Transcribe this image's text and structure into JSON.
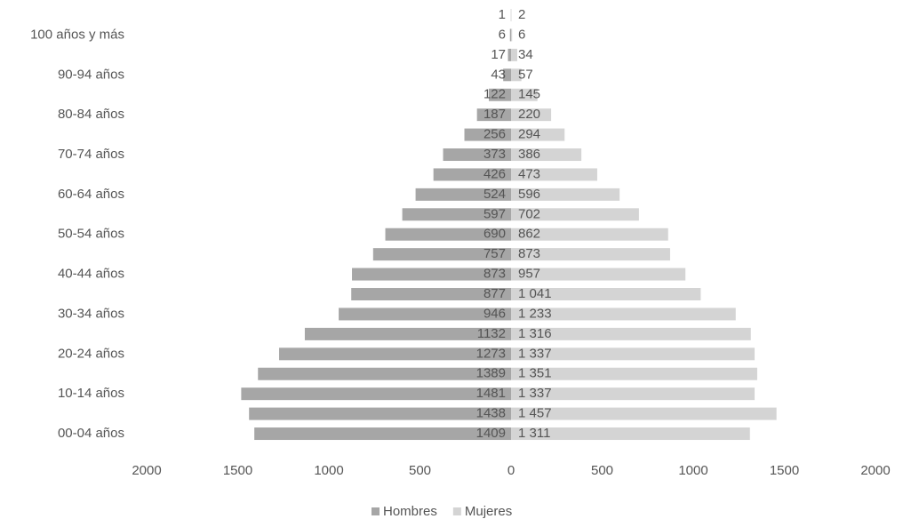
{
  "chart_data": {
    "type": "pyramid",
    "categories": [
      null,
      "100 años y más",
      null,
      "90-94 años",
      null,
      "80-84 años",
      null,
      "70-74 años",
      null,
      "60-64 años",
      null,
      "50-54 años",
      null,
      "40-44 años",
      null,
      "30-34 años",
      null,
      "20-24 años",
      null,
      "10-14 años",
      null,
      "00-04 años"
    ],
    "series": [
      {
        "name": "Hombres",
        "color": "#a6a6a6",
        "side": "left",
        "values": [
          1,
          6,
          17,
          43,
          122,
          187,
          256,
          373,
          426,
          524,
          597,
          690,
          757,
          873,
          877,
          946,
          1132,
          1273,
          1389,
          1481,
          1438,
          1409
        ]
      },
      {
        "name": "Mujeres",
        "color": "#d4d4d4",
        "side": "right",
        "values": [
          2,
          6,
          34,
          57,
          145,
          220,
          294,
          386,
          473,
          596,
          702,
          862,
          873,
          957,
          1041,
          1233,
          1316,
          1337,
          1351,
          1337,
          1457,
          1311
        ],
        "value_labels": [
          "2",
          "6",
          "34",
          "57",
          "145",
          "220",
          "294",
          "386",
          "473",
          "596",
          "702",
          "862",
          "873",
          "957",
          "1 041",
          "1 233",
          "1 316",
          "1 337",
          "1 351",
          "1 337",
          "1 457",
          "1 311"
        ]
      }
    ],
    "xlim": [
      -2000,
      2000
    ],
    "xticks": [
      {
        "value": -2000,
        "label": "2000"
      },
      {
        "value": -1500,
        "label": "1500"
      },
      {
        "value": -1000,
        "label": "1000"
      },
      {
        "value": -500,
        "label": "500"
      },
      0,
      500,
      1000,
      1500,
      2000
    ],
    "legend": "bottom"
  }
}
